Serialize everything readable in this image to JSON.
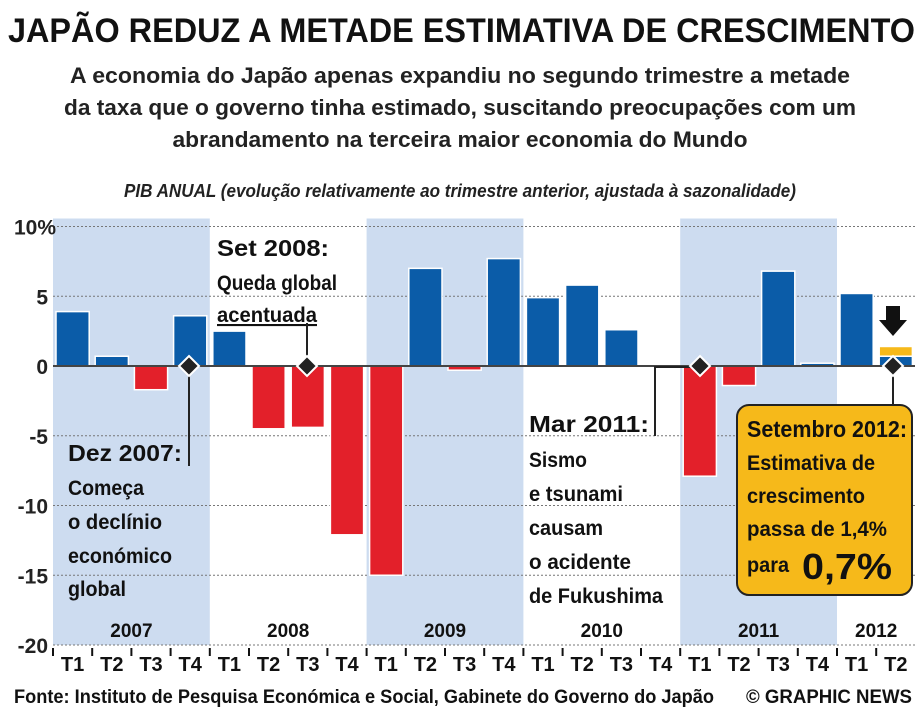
{
  "title": "JAPÃO REDUZ A METADE ESTIMATIVA DE CRESCIMENTO",
  "subtitle": [
    "A economia do Japão apenas expandiu no segundo trimestre a metade",
    "da taxa que o governo tinha estimado, suscitando preocupações com um",
    "abrandamento na terceira maior economia do Mundo"
  ],
  "footer": {
    "source": "Fonte: Instituto de Pesquisa Económica e Social, Gabinete do Governo do Japão",
    "credit": "© GRAPHIC NEWS"
  },
  "colors": {
    "positive": "#0b5ca8",
    "negative": "#e3202a",
    "band": "#cddcf0",
    "highlight": "#f6b91a"
  },
  "annotations": {
    "set2008": [
      "Set 2008:",
      "Queda global",
      "acentuada"
    ],
    "dez2007": [
      "Dez 2007:",
      "Começa",
      "o declínio",
      "económico",
      "global"
    ],
    "mar2011": [
      "Mar 2011:",
      "Sismo",
      "e tsunami",
      "causam",
      "o acidente",
      "de Fukushima"
    ],
    "set2012": {
      "head": "Setembro 2012:",
      "lines": [
        "Estimativa de",
        "crescimento",
        "passa de 1,4%"
      ],
      "para": "para",
      "value": "0,7%"
    }
  },
  "chart_data": {
    "type": "bar",
    "title": "PIB ANUAL (evolução relativamente ao trimestre anterior, ajustada à sazonalidade)",
    "ylabel": "%",
    "ylim": [
      -20,
      10
    ],
    "yticks": [
      10,
      5,
      0,
      -5,
      -10,
      -15,
      -20
    ],
    "ytick_labels": [
      "10%",
      "5",
      "0",
      "-5",
      "-10",
      "-15",
      "-20"
    ],
    "grid": true,
    "years": [
      "2007",
      "2008",
      "2009",
      "2010",
      "2011",
      "2012"
    ],
    "quarters_per_year": [
      4,
      4,
      4,
      4,
      4,
      2
    ],
    "categories": [
      "T1",
      "T2",
      "T3",
      "T4",
      "T1",
      "T2",
      "T3",
      "T4",
      "T1",
      "T2",
      "T3",
      "T4",
      "T1",
      "T2",
      "T3",
      "T4",
      "T1",
      "T2",
      "T3",
      "T4",
      "T1",
      "T2"
    ],
    "values": [
      3.9,
      0.7,
      -1.7,
      3.6,
      2.5,
      -4.5,
      -4.4,
      -12.1,
      -15.0,
      7.0,
      -0.3,
      7.7,
      4.9,
      5.8,
      2.6,
      0.0,
      -7.9,
      -1.4,
      6.8,
      0.2,
      5.2,
      0.7
    ],
    "previous_estimate": {
      "category_index": 21,
      "value": 1.4
    }
  }
}
